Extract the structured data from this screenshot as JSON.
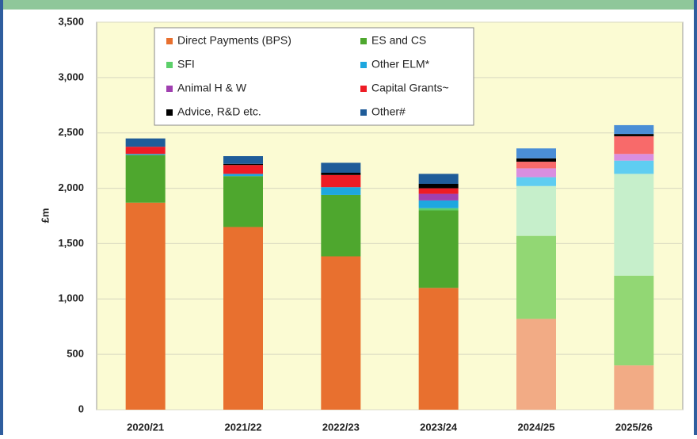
{
  "chart_data": {
    "type": "stacked_bar",
    "y_label": "£m",
    "categories": [
      "2020/21",
      "2021/22",
      "2022/23",
      "2023/24",
      "2024/25",
      "2025/26"
    ],
    "forecast_from": "2024/25",
    "series": [
      {
        "name": "Direct Payments (BPS)",
        "color": "#e8702f",
        "light_color": "#f2ab85",
        "values": [
          1870,
          1650,
          1385,
          1100,
          820,
          400
        ]
      },
      {
        "name": "ES and CS",
        "color": "#4ea72e",
        "light_color": "#92d774",
        "values": [
          430,
          460,
          555,
          700,
          750,
          810
        ]
      },
      {
        "name": "SFI",
        "color": "#5ccf6a",
        "light_color": "#c6efcb",
        "values": [
          0,
          0,
          0,
          20,
          450,
          920
        ]
      },
      {
        "name": "Other ELM*",
        "color": "#1ea7df",
        "light_color": "#5fcdf1",
        "values": [
          10,
          20,
          70,
          70,
          80,
          120
        ]
      },
      {
        "name": "Animal H & W",
        "color": "#a040b0",
        "light_color": "#d98ee0",
        "values": [
          0,
          0,
          0,
          60,
          80,
          60
        ]
      },
      {
        "name": "Capital Grants~",
        "color": "#ee1c25",
        "light_color": "#f86a6a",
        "values": [
          65,
          80,
          110,
          50,
          60,
          160
        ]
      },
      {
        "name": "Advice, R&D etc.",
        "color": "#000000",
        "light_color": "#000000",
        "values": [
          0,
          10,
          20,
          40,
          30,
          20
        ]
      },
      {
        "name": "Other#",
        "color": "#1f5c99",
        "light_color": "#4a8ed6",
        "values": [
          75,
          70,
          90,
          90,
          90,
          80
        ]
      }
    ],
    "ylim": [
      0,
      3500
    ],
    "yticks": [
      0,
      500,
      {
        "value": 1000,
        "label": "1,000"
      },
      {
        "value": 1500,
        "label": "1,500"
      },
      {
        "value": 2000,
        "label": "2,000"
      },
      {
        "value": 2500,
        "label": "2,500"
      },
      {
        "value": 3000,
        "label": "3,000"
      },
      {
        "value": 3500,
        "label": "3,500"
      }
    ],
    "grid": true
  }
}
